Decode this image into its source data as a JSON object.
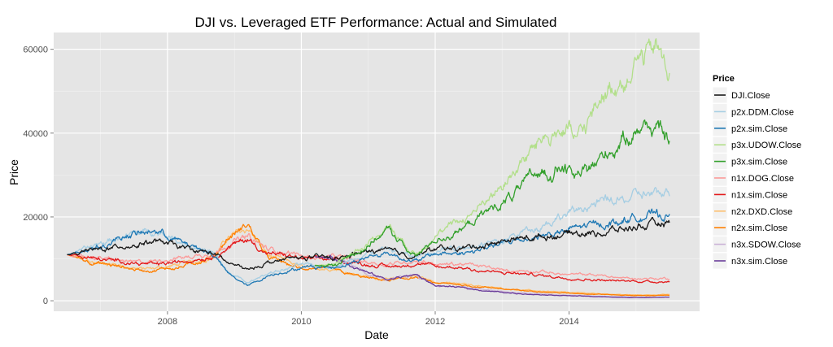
{
  "chart_data": {
    "type": "line",
    "title": "DJI vs. Leveraged ETF Performance: Actual and Simulated",
    "xlabel": "Date",
    "ylabel": "Price",
    "xlim": [
      2006.3,
      2015.95
    ],
    "ylim": [
      -2500,
      64000
    ],
    "x_ticks": [
      2008,
      2010,
      2012,
      2014
    ],
    "x_tick_labels": [
      "2008",
      "2010",
      "2012",
      "2014"
    ],
    "y_ticks": [
      0,
      20000,
      40000,
      60000
    ],
    "y_tick_labels": [
      "0",
      "20000",
      "40000",
      "60000"
    ],
    "grid": true,
    "legend": {
      "title": "Price",
      "position": "right"
    },
    "series": [
      {
        "name": "DJI.Close",
        "color": "#1a1a1a",
        "start": 2006.5,
        "x": [
          2006.5,
          2007.0,
          2007.4,
          2007.8,
          2008.2,
          2008.7,
          2008.9,
          2009.2,
          2009.5,
          2010.0,
          2010.5,
          2011.0,
          2011.3,
          2011.7,
          2012.0,
          2012.5,
          2013.0,
          2013.5,
          2014.0,
          2014.5,
          2015.0,
          2015.5
        ],
        "y": [
          11000,
          12300,
          13200,
          13900,
          12800,
          11400,
          9000,
          7300,
          9200,
          10400,
          10300,
          11700,
          12300,
          11200,
          12400,
          12800,
          13800,
          15000,
          16000,
          16800,
          17700,
          17700
        ]
      },
      {
        "name": "p2x.DDM.Close",
        "color": "#a6cee3",
        "start": 2006.5,
        "x": [
          2006.5,
          2007.0,
          2007.4,
          2007.8,
          2008.2,
          2008.7,
          2008.9,
          2009.2,
          2009.5,
          2010.0,
          2010.5,
          2011.0,
          2011.3,
          2011.7,
          2012.0,
          2012.5,
          2013.0,
          2013.5,
          2014.0,
          2014.5,
          2015.0,
          2015.5
        ],
        "y": [
          11000,
          13500,
          15500,
          16800,
          14200,
          11000,
          6800,
          4200,
          6600,
          8600,
          8400,
          11000,
          12200,
          10000,
          12000,
          13000,
          15000,
          18000,
          20500,
          23000,
          25500,
          25000
        ]
      },
      {
        "name": "p2x.sim.Close",
        "color": "#1f78b4",
        "start": 2006.5,
        "x": [
          2006.5,
          2007.0,
          2007.4,
          2007.8,
          2008.2,
          2008.7,
          2008.9,
          2009.2,
          2009.5,
          2010.0,
          2010.5,
          2011.0,
          2011.3,
          2011.7,
          2012.0,
          2012.5,
          2013.0,
          2013.5,
          2014.0,
          2014.5,
          2015.0,
          2015.5
        ],
        "y": [
          11000,
          13400,
          15600,
          16700,
          14000,
          10800,
          6500,
          3700,
          6000,
          8000,
          8000,
          10400,
          11400,
          9400,
          11000,
          11800,
          13400,
          15600,
          17000,
          18700,
          20400,
          20000
        ]
      },
      {
        "name": "p3x.UDOW.Close",
        "color": "#b2df8a",
        "start": 2010.2,
        "x": [
          2010.2,
          2010.5,
          2011.0,
          2011.3,
          2011.7,
          2012.0,
          2012.5,
          2013.0,
          2013.3,
          2013.6,
          2013.9,
          2014.1,
          2014.5,
          2014.8,
          2015.0,
          2015.3,
          2015.5
        ],
        "y": [
          8500,
          8500,
          14000,
          18000,
          11000,
          16000,
          20000,
          27000,
          34000,
          39000,
          43000,
          40000,
          48000,
          52000,
          56000,
          59000,
          55000
        ]
      },
      {
        "name": "p3x.sim.Close",
        "color": "#33a02c",
        "start": 2010.2,
        "x": [
          2010.2,
          2010.5,
          2011.0,
          2011.3,
          2011.7,
          2012.0,
          2012.5,
          2013.0,
          2013.3,
          2013.6,
          2013.9,
          2014.1,
          2014.5,
          2014.8,
          2015.0,
          2015.3,
          2015.5
        ],
        "y": [
          8400,
          8300,
          13600,
          17000,
          10500,
          14500,
          18000,
          23000,
          27000,
          31000,
          33000,
          30000,
          36000,
          39000,
          40500,
          42000,
          38500
        ]
      },
      {
        "name": "n1x.DOG.Close",
        "color": "#fb9a99",
        "start": 2006.5,
        "x": [
          2006.5,
          2007.0,
          2007.4,
          2007.8,
          2008.2,
          2008.7,
          2008.9,
          2009.2,
          2009.5,
          2010.0,
          2010.5,
          2011.0,
          2011.3,
          2011.7,
          2012.0,
          2012.5,
          2013.0,
          2013.5,
          2014.0,
          2014.5,
          2015.0,
          2015.5
        ],
        "y": [
          11000,
          10000,
          9400,
          9200,
          10200,
          11300,
          13800,
          15600,
          12300,
          10600,
          10700,
          9500,
          9000,
          9800,
          8800,
          8500,
          7500,
          6800,
          6300,
          5900,
          5300,
          5400
        ]
      },
      {
        "name": "n1x.sim.Close",
        "color": "#e31a1c",
        "start": 2006.5,
        "x": [
          2006.5,
          2007.0,
          2007.4,
          2007.8,
          2008.2,
          2008.7,
          2008.9,
          2009.2,
          2009.5,
          2010.0,
          2010.5,
          2011.0,
          2011.3,
          2011.7,
          2012.0,
          2012.5,
          2013.0,
          2013.5,
          2014.0,
          2014.5,
          2015.0,
          2015.5
        ],
        "y": [
          11000,
          9900,
          9100,
          8800,
          9500,
          10600,
          12800,
          14500,
          11400,
          9800,
          9800,
          8700,
          8300,
          8900,
          7900,
          7600,
          6700,
          6000,
          5500,
          5100,
          4700,
          4800
        ]
      },
      {
        "name": "n2x.DXD.Close",
        "color": "#fdbf6f",
        "start": 2006.5,
        "x": [
          2006.5,
          2007.0,
          2007.4,
          2007.8,
          2008.2,
          2008.7,
          2008.9,
          2009.2,
          2009.5,
          2010.0,
          2010.5,
          2011.0,
          2011.3,
          2011.7,
          2012.0,
          2012.5,
          2013.0,
          2013.5,
          2014.0,
          2014.5,
          2015.0,
          2015.5
        ],
        "y": [
          11000,
          9000,
          7900,
          7400,
          8600,
          10600,
          15000,
          18000,
          11000,
          8000,
          7700,
          5800,
          5100,
          6000,
          4400,
          3900,
          3000,
          2400,
          2000,
          1700,
          1400,
          1500
        ]
      },
      {
        "name": "n2x.sim.Close",
        "color": "#ff7f00",
        "start": 2006.5,
        "x": [
          2006.5,
          2007.0,
          2007.4,
          2007.8,
          2008.2,
          2008.7,
          2008.9,
          2009.2,
          2009.5,
          2010.0,
          2010.5,
          2011.0,
          2011.3,
          2011.7,
          2012.0,
          2012.5,
          2013.0,
          2013.5,
          2014.0,
          2014.5,
          2015.0,
          2015.5
        ],
        "y": [
          11000,
          8800,
          7600,
          7000,
          8200,
          10200,
          14500,
          17500,
          10500,
          7500,
          7300,
          5400,
          4700,
          5600,
          4100,
          3600,
          2800,
          2200,
          1800,
          1500,
          1200,
          1300
        ]
      },
      {
        "name": "n3x.SDOW.Close",
        "color": "#cab2d6",
        "start": 2010.2,
        "x": [
          2010.2,
          2010.5,
          2011.0,
          2011.3,
          2011.7,
          2012.0,
          2012.5,
          2013.0,
          2013.5,
          2014.0,
          2014.5,
          2015.0,
          2015.5
        ],
        "y": [
          10500,
          10400,
          6500,
          5000,
          6500,
          3800,
          3100,
          2200,
          1600,
          1300,
          1000,
          800,
          900
        ]
      },
      {
        "name": "n3x.sim.Close",
        "color": "#6a3d9a",
        "start": 2010.2,
        "x": [
          2010.2,
          2010.5,
          2011.0,
          2011.3,
          2011.7,
          2012.0,
          2012.5,
          2013.0,
          2013.5,
          2014.0,
          2014.5,
          2015.0,
          2015.5
        ],
        "y": [
          10500,
          10300,
          6300,
          4800,
          6200,
          3600,
          2900,
          2000,
          1500,
          1200,
          950,
          750,
          850
        ]
      }
    ]
  }
}
